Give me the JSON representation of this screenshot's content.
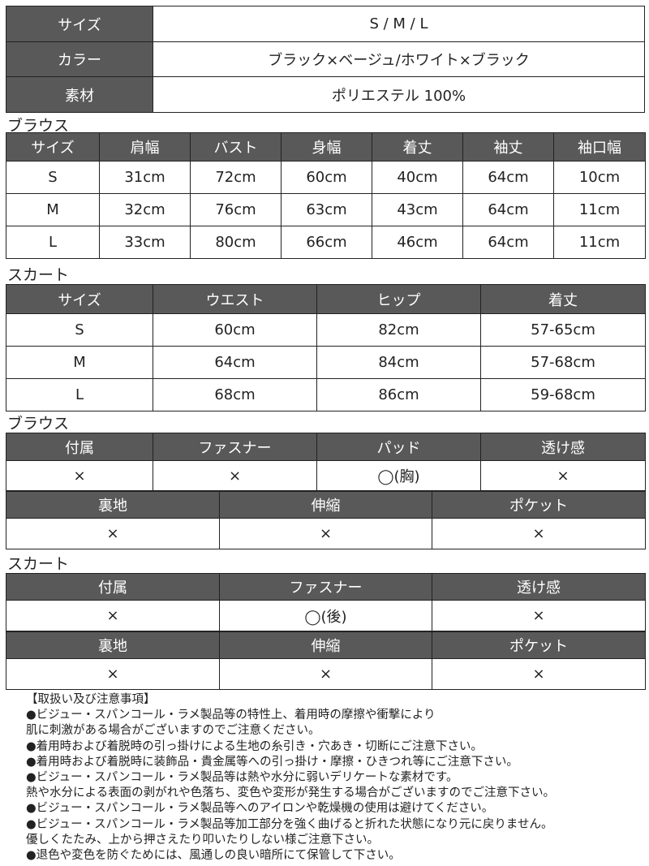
{
  "spec": {
    "rows": [
      {
        "label": "サイズ",
        "value": "S / M / L"
      },
      {
        "label": "カラー",
        "value": "ブラック×ベージュ/ホワイト×ブラック"
      },
      {
        "label": "素材",
        "value": "ポリエステル 100%"
      }
    ]
  },
  "blouse_size": {
    "title": "ブラウス",
    "headers": [
      "サイズ",
      "肩幅",
      "バスト",
      "身幅",
      "着丈",
      "袖丈",
      "袖口幅"
    ],
    "rows": [
      [
        "S",
        "31cm",
        "72cm",
        "60cm",
        "40cm",
        "64cm",
        "10cm"
      ],
      [
        "M",
        "32cm",
        "76cm",
        "63cm",
        "43cm",
        "64cm",
        "11cm"
      ],
      [
        "L",
        "33cm",
        "80cm",
        "66cm",
        "46cm",
        "64cm",
        "11cm"
      ]
    ]
  },
  "skirt_size": {
    "title": "スカート",
    "headers": [
      "サイズ",
      "ウエスト",
      "ヒップ",
      "着丈"
    ],
    "rows": [
      [
        "S",
        "60cm",
        "82cm",
        "57-65cm"
      ],
      [
        "M",
        "64cm",
        "84cm",
        "57-68cm"
      ],
      [
        "L",
        "68cm",
        "86cm",
        "59-68cm"
      ]
    ]
  },
  "blouse_detail": {
    "title": "ブラウス",
    "headers1": [
      "付属",
      "ファスナー",
      "パッド",
      "透け感"
    ],
    "values1": [
      "×",
      "×",
      "◯(胸)",
      "×"
    ],
    "headers2": [
      "裏地",
      "伸縮",
      "ポケット"
    ],
    "values2": [
      "×",
      "×",
      "×"
    ]
  },
  "skirt_detail": {
    "title": "スカート",
    "headers1": [
      "付属",
      "ファスナー",
      "透け感"
    ],
    "values1": [
      "×",
      "◯(後)",
      "×"
    ],
    "headers2": [
      "裏地",
      "伸縮",
      "ポケット"
    ],
    "values2": [
      "×",
      "×",
      "×"
    ]
  },
  "notes": [
    "【取扱い及び注意事項】",
    "●ビジュー・スパンコール・ラメ製品等の特性上、着用時の摩擦や衝撃により",
    "肌に刺激がある場合がございますのでご注意ください。",
    "●着用時および着脱時の引っ掛けによる生地の糸引き・穴あき・切断にご注意下さい。",
    "●着用時および着脱時に装飾品・貴金属等への引っ掛け・摩擦・ひきつれ等にご注意下さい。",
    "●ビジュー・スパンコール・ラメ製品等は熱や水分に弱いデリケートな素材です。",
    "熱や水分による表面の剥がれや色落ち、変色や変形が発生する場合がございますのでご注意下さい。",
    "●ビジュー・スパンコール・ラメ製品等へのアイロンや乾燥機の使用は避けてください。",
    "●ビジュー・スパンコール・ラメ製品等加工部分を強く曲げると折れた状態になり元に戻りません。",
    "優しくたたみ、上から押さえたり叩いたりしない様ご注意下さい。",
    "●退色や変色を防ぐためには、風通しの良い暗所にて保管して下さい。"
  ]
}
